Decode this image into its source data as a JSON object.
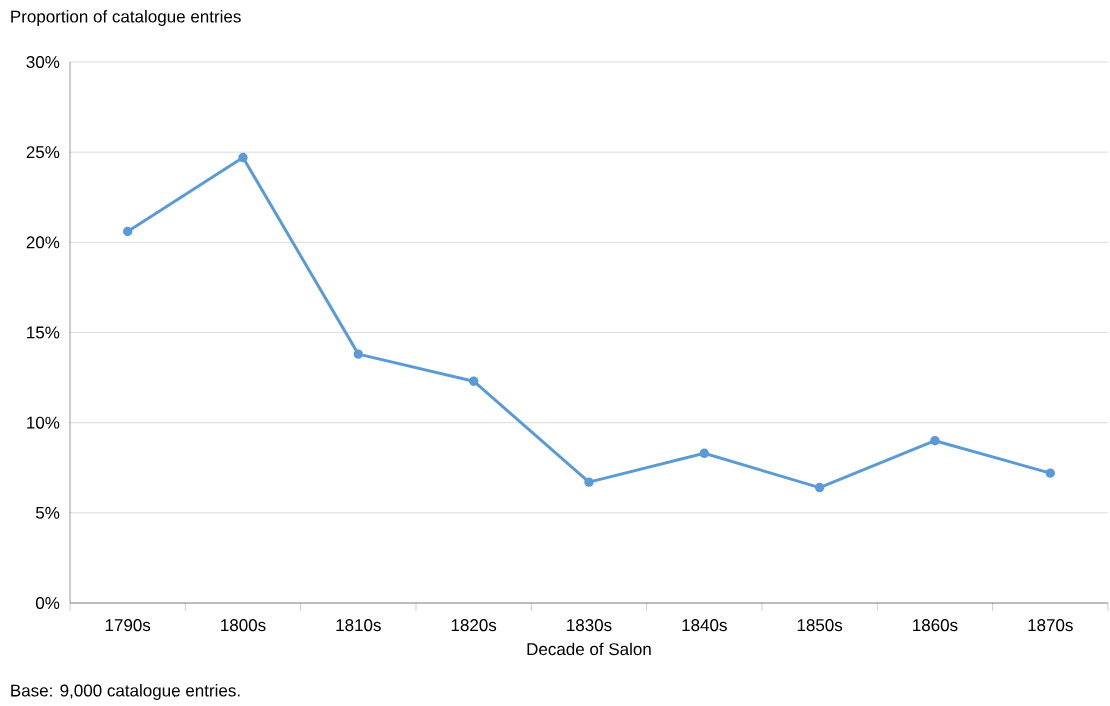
{
  "chart_data": {
    "type": "line",
    "ylabel": "Proportion of catalogue entries",
    "xlabel": "Decade of Salon",
    "categories": [
      "1790s",
      "1800s",
      "1810s",
      "1820s",
      "1830s",
      "1840s",
      "1850s",
      "1860s",
      "1870s"
    ],
    "series": [
      {
        "color": "#5b9bd5",
        "values": [
          20.6,
          24.7,
          13.8,
          12.3,
          6.7,
          8.3,
          6.4,
          9.0,
          7.2
        ]
      }
    ],
    "ylim": [
      0,
      30
    ],
    "yticks": [
      {
        "value": 0,
        "label": "0%"
      },
      {
        "value": 5,
        "label": "5%"
      },
      {
        "value": 10,
        "label": "10%"
      },
      {
        "value": 15,
        "label": "15%"
      },
      {
        "value": 20,
        "label": "20%"
      },
      {
        "value": 25,
        "label": "25%"
      },
      {
        "value": 30,
        "label": "30%"
      }
    ],
    "grid": "y",
    "marker": "circle",
    "line_style": "solid",
    "annotations": [
      "Base: 9,000 catalogue entries."
    ]
  }
}
